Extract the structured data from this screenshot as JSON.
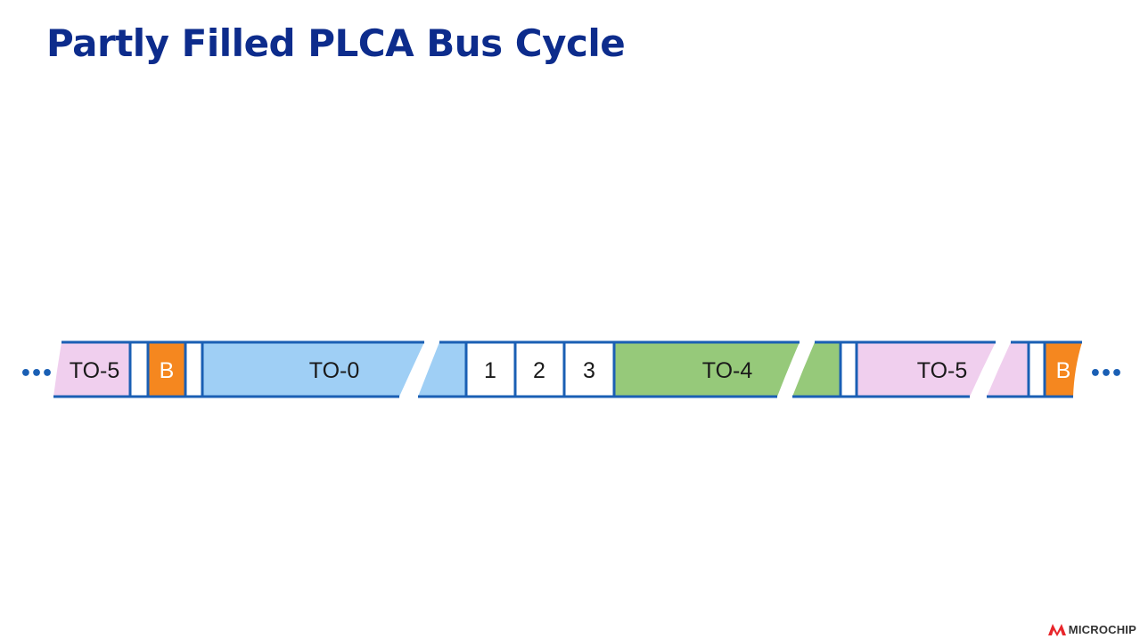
{
  "slide": {
    "title": "Partly Filled PLCA Bus Cycle"
  },
  "diagram": {
    "ellipsis_left": "•••",
    "ellipsis_right": "•••",
    "segments": [
      {
        "label": "TO-5",
        "color": "#f0cfee"
      },
      {
        "label": "",
        "color": "#ffffff"
      },
      {
        "label": "B",
        "color": "#f5871f"
      },
      {
        "label": "",
        "color": "#ffffff"
      },
      {
        "label": "TO-0",
        "color": "#9fcff5"
      },
      {
        "label": "1",
        "color": "#ffffff"
      },
      {
        "label": "2",
        "color": "#ffffff"
      },
      {
        "label": "3",
        "color": "#ffffff"
      },
      {
        "label": "TO-4",
        "color": "#96c97a"
      },
      {
        "label": "",
        "color": "#ffffff"
      },
      {
        "label": "TO-5",
        "color": "#f0cfee"
      },
      {
        "label": "",
        "color": "#ffffff"
      },
      {
        "label": "B",
        "color": "#f5871f"
      }
    ],
    "border_color": "#1a5fb4"
  },
  "logo": {
    "text": "MICROCHIP",
    "color": "#e8262b"
  }
}
